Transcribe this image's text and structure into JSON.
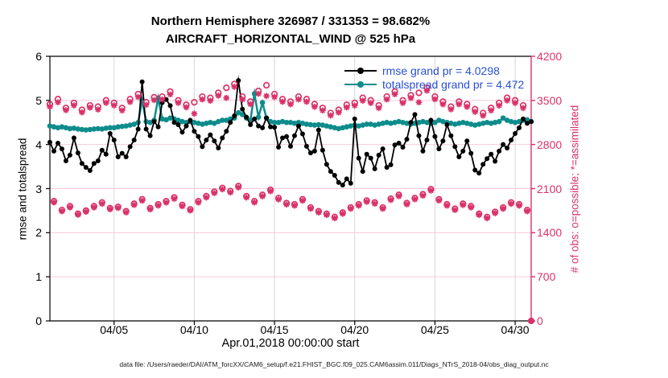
{
  "title": {
    "line1": "Northern Hemisphere 326987 / 331353 = 98.682%",
    "line2": "AIRCRAFT_HORIZONTAL_WIND @ 525 hPa"
  },
  "legend": [
    {
      "label": "rmse grand pr = 4.0298",
      "color": "#000000"
    },
    {
      "label": "totalspread grand pr = 4.472",
      "color": "#0e8c8c"
    }
  ],
  "axes": {
    "left": {
      "label": "rmse and totalspread",
      "ticks": [
        0,
        1,
        2,
        3,
        4,
        5,
        6
      ]
    },
    "right": {
      "label": "# of obs: o=possible; *=assimilated",
      "ticks": [
        0,
        700,
        1400,
        2100,
        2800,
        3500,
        4200
      ]
    },
    "x": {
      "label": "Apr.01,2018 00:00:00 start",
      "tick_labels": [
        "04/05",
        "04/10",
        "04/15",
        "04/20",
        "04/25",
        "04/30"
      ],
      "tick_days": [
        4,
        9,
        14,
        19,
        24,
        29
      ]
    }
  },
  "footer": "data file: /Users/raeder/DAI/ATM_forcXX/CAM6_setup/f.e21.FHIST_BGC.f09_025.CAM6assim.011/Diags_NTrS_2018-04/obs_diag_output.nc",
  "colors": {
    "series_rmse": "#000000",
    "series_totalspread": "#0e8c8c",
    "obs_pink": "#da3268",
    "axis_right_pink": "#da3268",
    "grid_pink": "#f6c9d8",
    "grid_gray": "#d6d6d6",
    "legend_text": "#2850d0"
  },
  "chart_data": {
    "type": "line",
    "t_start": 0,
    "t_step": 0.25,
    "x_range": [
      0,
      30
    ],
    "left_range": [
      0,
      6
    ],
    "right_range": [
      0,
      4200
    ],
    "series": [
      {
        "name": "rmse",
        "axis": "left"
      },
      {
        "name": "totalspread",
        "axis": "left"
      },
      {
        "name": "obs_possible",
        "axis": "right",
        "marker": "o"
      },
      {
        "name": "obs_assimilated",
        "axis": "right",
        "marker": "*"
      }
    ],
    "rmse": [
      4.05,
      3.85,
      4.03,
      3.9,
      3.63,
      3.76,
      4.15,
      3.81,
      3.57,
      3.48,
      3.41,
      3.57,
      3.63,
      3.87,
      3.78,
      4.25,
      4.1,
      3.72,
      3.8,
      3.72,
      3.95,
      4.1,
      4.35,
      5.42,
      4.35,
      4.2,
      4.52,
      4.4,
      4.95,
      5.02,
      4.88,
      4.5,
      4.45,
      4.28,
      4.42,
      4.55,
      4.3,
      4.18,
      3.95,
      4.1,
      4.22,
      4.08,
      3.92,
      4.15,
      4.3,
      4.5,
      4.65,
      5.45,
      4.8,
      4.62,
      4.45,
      4.58,
      4.42,
      4.38,
      4.6,
      4.4,
      4.39,
      3.94,
      4.15,
      4.18,
      3.96,
      4.2,
      4.42,
      4.24,
      3.96,
      3.81,
      3.85,
      4.33,
      3.87,
      3.55,
      3.39,
      3.3,
      3.14,
      3.08,
      3.22,
      3.12,
      4.58,
      3.69,
      3.39,
      3.78,
      3.69,
      3.45,
      3.76,
      3.9,
      3.48,
      3.54,
      3.99,
      4.03,
      3.94,
      4.12,
      4.5,
      4.68,
      4.2,
      3.85,
      4.1,
      4.55,
      4.18,
      3.9,
      4.08,
      4.45,
      4.2,
      3.95,
      3.72,
      3.85,
      4.08,
      3.8,
      3.42,
      3.35,
      3.55,
      3.68,
      3.78,
      3.62,
      3.85,
      4.0,
      3.92,
      4.1,
      4.25,
      4.38,
      4.58,
      4.48,
      4.52
    ],
    "totalspread": [
      4.42,
      4.4,
      4.38,
      4.4,
      4.38,
      4.36,
      4.37,
      4.35,
      4.34,
      4.33,
      4.34,
      4.35,
      4.36,
      4.35,
      4.37,
      4.38,
      4.38,
      4.4,
      4.41,
      4.42,
      4.44,
      4.46,
      4.5,
      5.0,
      4.52,
      4.5,
      4.55,
      5.05,
      4.58,
      4.56,
      4.6,
      4.58,
      4.55,
      4.52,
      4.5,
      4.52,
      4.5,
      4.48,
      4.46,
      4.48,
      4.5,
      4.48,
      4.52,
      4.55,
      4.55,
      4.58,
      4.6,
      4.72,
      4.68,
      4.6,
      4.55,
      5.15,
      4.62,
      4.95,
      4.6,
      4.52,
      4.5,
      4.5,
      4.52,
      4.5,
      4.5,
      4.48,
      4.5,
      4.48,
      4.46,
      4.45,
      4.44,
      4.45,
      4.44,
      4.42,
      4.4,
      4.38,
      4.36,
      4.38,
      4.4,
      4.42,
      4.44,
      4.42,
      4.44,
      4.46,
      4.46,
      4.44,
      4.46,
      4.48,
      4.5,
      4.48,
      4.5,
      4.52,
      4.5,
      4.48,
      4.46,
      4.48,
      4.5,
      4.52,
      4.5,
      4.48,
      4.5,
      4.55,
      4.52,
      4.5,
      4.48,
      4.46,
      4.48,
      4.5,
      4.48,
      4.46,
      4.44,
      4.46,
      4.48,
      4.5,
      4.48,
      4.5,
      4.52,
      4.6,
      4.55,
      4.52,
      4.5,
      4.52,
      4.55,
      4.56,
      4.52
    ],
    "obs_possible": [
      3440,
      1900,
      3520,
      1760,
      3380,
      1820,
      3460,
      1700,
      3350,
      1750,
      3420,
      1820,
      3400,
      1880,
      3500,
      1790,
      3460,
      1810,
      3380,
      1740,
      3520,
      1860,
      3600,
      1930,
      3470,
      1790,
      3550,
      1850,
      3560,
      1900,
      3640,
      1960,
      3500,
      1840,
      3430,
      1770,
      3470,
      1900,
      3560,
      1980,
      3540,
      2050,
      3620,
      2110,
      3700,
      2060,
      3760,
      2140,
      3560,
      1980,
      3480,
      1900,
      3650,
      2000,
      3740,
      2080,
      3600,
      1950,
      3520,
      1870,
      3480,
      1850,
      3560,
      1930,
      3520,
      1800,
      3440,
      1740,
      3380,
      1700,
      3300,
      1650,
      3350,
      1720,
      3430,
      1800,
      3460,
      1850,
      3540,
      1910,
      3500,
      1880,
      3420,
      1800,
      3560,
      1940,
      3640,
      2000,
      3500,
      1870,
      3580,
      1950,
      3620,
      2010,
      3700,
      2090,
      3560,
      1930,
      3480,
      1850,
      3400,
      1780,
      3480,
      1860,
      3440,
      1820,
      3360,
      1700,
      3300,
      1650,
      3380,
      1730,
      3460,
      1800,
      3540,
      1880,
      3500,
      1850,
      3420,
      1760,
      0
    ],
    "obs_assimilated": [
      3400,
      1880,
      3470,
      1740,
      3345,
      1800,
      3420,
      1685,
      3310,
      1732,
      3385,
      1800,
      3355,
      1858,
      3460,
      1772,
      3420,
      1792,
      3340,
      1722,
      3475,
      1840,
      3555,
      1908,
      3430,
      1770,
      3505,
      1830,
      3515,
      1878,
      3595,
      1938,
      3460,
      1820,
      3390,
      1752,
      3290,
      1878,
      3515,
      1958,
      3495,
      2028,
      3575,
      2088,
      3540,
      2038,
      3715,
      2118,
      3515,
      1958,
      3440,
      1880,
      3605,
      1978,
      3570,
      2058,
      3555,
      1928,
      3478,
      1848,
      3438,
      1830,
      3515,
      1908,
      3478,
      1780,
      3398,
      1720,
      3340,
      1682,
      3260,
      1630,
      3308,
      1700,
      3388,
      1780,
      3418,
      1830,
      3495,
      1890,
      3458,
      1860,
      3378,
      1780,
      3515,
      1918,
      3598,
      1980,
      3458,
      1850,
      3538,
      1930,
      3470,
      1988,
      3655,
      2068,
      3518,
      1910,
      3438,
      1830,
      3358,
      1760,
      3438,
      1840,
      3398,
      1800,
      3318,
      1682,
      3258,
      1630,
      3340,
      1710,
      3418,
      1780,
      3498,
      1858,
      3458,
      1830,
      3378,
      1740,
      0
    ]
  }
}
